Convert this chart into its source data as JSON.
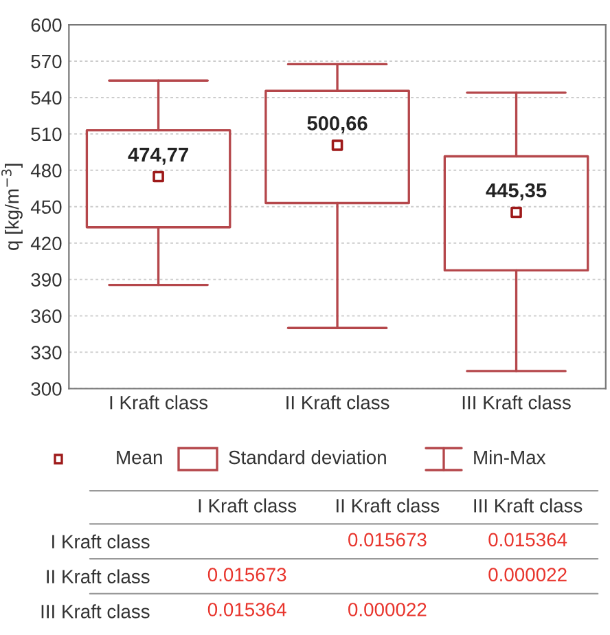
{
  "chart_data": [
    {
      "type": "box",
      "ylabel": "q [kg/m$^{−3}$]",
      "categories": [
        "I Kraft class",
        "II Kraft class",
        "III Kraft class"
      ],
      "boxes": [
        {
          "low": 385.5,
          "q1": 433,
          "median": 474.77,
          "q3": 513,
          "high": 554
        },
        {
          "low": 350,
          "q1": 453,
          "median": 500.66,
          "q3": 545.5,
          "high": 567.5
        },
        {
          "low": 314.5,
          "q1": 397.5,
          "median": 445.35,
          "q3": 491.5,
          "high": 544
        }
      ],
      "value_labels": [
        "474,77",
        "500,66",
        "445,35"
      ],
      "color": "#b5474b",
      "ylim": [
        300,
        600
      ],
      "yticks": [
        300,
        330,
        360,
        390,
        420,
        450,
        480,
        510,
        540,
        570,
        600
      ],
      "grid": "y",
      "annotations": [
        "Mean",
        "Standard deviation",
        "Min-Max"
      ]
    },
    {
      "type": "other",
      "categories": [
        "I Kraft class",
        "II Kraft class",
        "III Kraft class"
      ],
      "y_categories": [
        "I Kraft class",
        "II Kraft class",
        "III Kraft class"
      ],
      "cell_labels": [
        [
          null,
          "0.015673",
          "0.015364"
        ],
        [
          "0.015673",
          null,
          "0.000022"
        ],
        [
          "0.015364",
          "0.000022",
          null
        ]
      ],
      "color": "#e8342c"
    }
  ]
}
